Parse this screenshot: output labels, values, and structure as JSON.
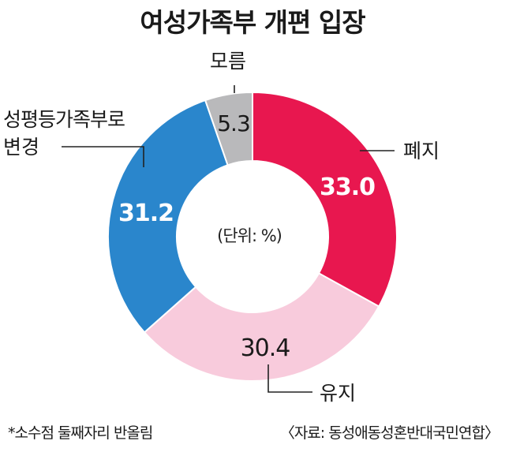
{
  "title": "여성가족부 개편 입장",
  "chart_data": {
    "type": "pie",
    "unit_note": "(단위: %)",
    "slices": [
      {
        "name": "폐지",
        "value": 33.0,
        "label": "33.0",
        "color": "#e8174f"
      },
      {
        "name": "유지",
        "value": 30.4,
        "label": "30.4",
        "color": "#f8cbdc"
      },
      {
        "name": "성평등가족부로 변경",
        "value": 31.2,
        "label": "31.2",
        "color": "#2a86cc"
      },
      {
        "name": "모름",
        "value": 5.3,
        "label": "5.3",
        "color": "#b9b9bb"
      }
    ]
  },
  "category_labels": {
    "abolish": "폐지",
    "keep": "유지",
    "change_line1": "성평등가족부로",
    "change_line2": "변경",
    "unknown": "모름"
  },
  "footnote": "*소수점 둘째자리 반올림",
  "source": "〈자료: 동성애동성혼반대국민연합〉"
}
